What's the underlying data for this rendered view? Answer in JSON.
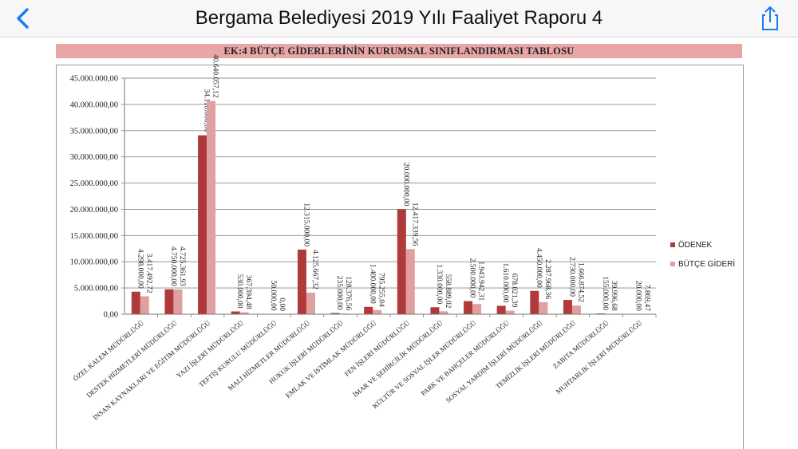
{
  "header": {
    "title": "Bergama Belediyesi 2019 Yılı Faaliyet Raporu 4",
    "back_icon": "chevron-left-icon",
    "share_icon": "share-icon",
    "accent_color": "#1a7cf5"
  },
  "banner": {
    "text": "EK:4 BÜTÇE GİDERLERİNİN KURUMSAL SINIFLANDIRMASI TABLOSU",
    "color": "#e8a6a6"
  },
  "chart_data": {
    "type": "bar",
    "categories": [
      "ÖZEL KALEM MÜDÜRLÜĞÜ",
      "DESTEK HİZMETLERİ MÜDÜRLÜĞÜ",
      "İNSAN KAYNAKLARI VE EĞİTİM MÜDÜRLÜĞÜ",
      "YAZI İŞLERİ MÜDÜRLÜĞÜ",
      "TEFTİŞ KURULU MÜDÜRLÜĞÜ",
      "MALİ HİZMETLER MÜDÜRLÜĞÜ",
      "HUKUK İŞLERİ MÜDÜRLÜĞÜ",
      "EMLAK VE İSTİMLAK MÜDÜRLÜĞÜ",
      "FEN İŞLERİ MÜDÜRLÜĞÜ",
      "İMAR VE ŞEHİRCİLİK MÜDÜRLÜĞÜ",
      "KÜLTÜR VE SOSYAL İŞLER MÜDÜRLÜĞÜ",
      "PARK VE BAHÇELER MÜDÜRLÜĞÜ",
      "SOSYAL YARDIM İŞLERİ MÜDÜRLÜĞÜ",
      "TEMİZLİK İŞLERİ MÜDÜRLÜĞÜ",
      "ZABITA MÜDÜRLÜĞÜ",
      "MUHTARLIK İŞLERİ MÜDÜRLÜĞÜ"
    ],
    "series": [
      {
        "name": "ÖDENEK",
        "color": "#b03a3a",
        "values": [
          4298000,
          4750000,
          34110000,
          530000,
          50000,
          12315000,
          235000,
          1400000,
          20000000,
          1330000,
          2500000,
          1610000,
          4450000,
          2730000,
          155000,
          20000
        ],
        "labels": [
          "4.298.000,00",
          "4.750.000,00",
          "34.110.000,00",
          "530.000,00",
          "50.000,00",
          "12.315.000,00",
          "235.000,00",
          "1.400.000,00",
          "20.000.000,00",
          "1.330.000,00",
          "2.500.000,00",
          "1.610.000,00",
          "4.450.000,00",
          "2.730.000,00",
          "155.000,00",
          "20.000,00"
        ]
      },
      {
        "name": "BÜTÇE GİDERİ",
        "color": "#e0a0a0",
        "values": [
          3417492.72,
          4725361.93,
          40640057.12,
          367394.48,
          0,
          4125667.32,
          128376.56,
          795255.04,
          12417339.56,
          558889.02,
          1943942.31,
          678021.39,
          2287968.36,
          1666874.52,
          39996.68,
          7869.47
        ],
        "labels": [
          "3.417.492,72",
          "4.725.361,93",
          "40.640.057,12",
          "367.394,48",
          "0,00",
          "4.125.667,32",
          "128.376,56",
          "795.255,04",
          "12.417.339,56",
          "558.889,02",
          "1.943.942,31",
          "678.021,39",
          "2.287.968,36",
          "1.666.874,52",
          "39.996,68",
          "7.869,47"
        ]
      }
    ],
    "yticks": [
      "0,00",
      "5.000.000,00",
      "10.000.000,00",
      "15.000.000,00",
      "20.000.000,00",
      "25.000.000,00",
      "30.000.000,00",
      "35.000.000,00",
      "40.000.000,00",
      "45.000.000,00"
    ],
    "ylim": [
      0,
      45000000
    ],
    "ytick_step": 5000000,
    "grid": true,
    "legend_position": "right"
  }
}
